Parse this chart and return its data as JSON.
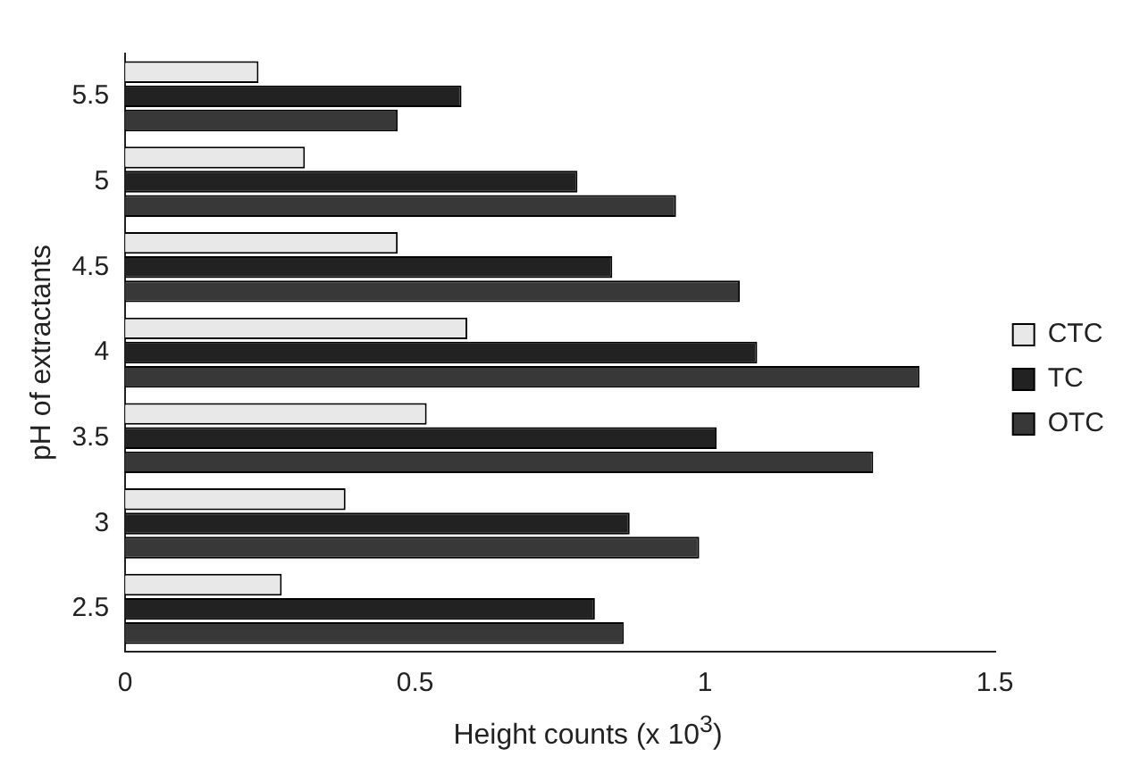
{
  "chart_data": {
    "type": "bar",
    "orientation": "horizontal",
    "xlabel": "Height counts (x 10$^{3}$)",
    "ylabel": "pH of extractants",
    "categories": [
      "5.5",
      "5",
      "4.5",
      "4",
      "3.5",
      "3",
      "2.5"
    ],
    "series": [
      {
        "name": "CTC",
        "color": "#e8e8e8",
        "values": [
          0.23,
          0.31,
          0.47,
          0.59,
          0.52,
          0.38,
          0.27
        ]
      },
      {
        "name": "TC",
        "color": "#222222",
        "values": [
          0.58,
          0.78,
          0.84,
          1.09,
          1.02,
          0.87,
          0.81
        ]
      },
      {
        "name": "OTC",
        "color": "#383838",
        "values": [
          0.47,
          0.95,
          1.06,
          1.37,
          1.29,
          0.99,
          0.86
        ]
      }
    ],
    "xlim": [
      0,
      1.5
    ],
    "xticks": [
      0,
      0.5,
      1,
      1.5
    ],
    "grid": false,
    "legend": "right"
  }
}
